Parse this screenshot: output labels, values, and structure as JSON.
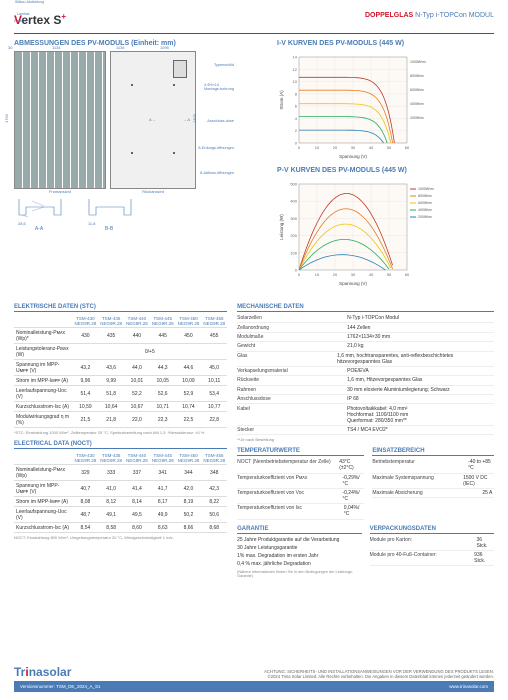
{
  "header": {
    "logo_pre": "V",
    "logo_text": "ertex S",
    "logo_plus": "+",
    "line1": "DOPPELGLAS",
    "line2": "N-Typ i-TOPCon MODUL"
  },
  "dim": {
    "title": "ABMESSUNGEN DES PV-MODULS (Einheit: mm)",
    "w1": "1134",
    "w2": "1134",
    "w3": "1095",
    "h": "1762",
    "hr": "1300",
    "t": "30",
    "front": "Frontansicht",
    "back": "Rückansicht",
    "aa": "A-A",
    "bb": "B-B",
    "d1": "28,5",
    "d2": "11,8",
    "typ": "Typenschild",
    "mont": "4-Φ9×14\nMontage-bohrung",
    "ansch": "Anschluss-dose",
    "erd": "8-Erdungs-öffnungen",
    "abfl": "8-Abfluss-öffnungen",
    "sil": "Silikon-Abdichtung",
    "lam": "Laminat",
    "rah": "Rahmen"
  },
  "iv": {
    "title": "I-V KURVEN DES PV-MODULS (445 W)",
    "xlabel": "Spannung (V)",
    "ylabel": "Strom (A)",
    "xmax": 60,
    "ymax": 14,
    "xtick": 10,
    "ytick": 2,
    "legend": [
      "1000W/m²",
      "800W/m²",
      "600W/m²",
      "400W/m²",
      "200W/m²"
    ],
    "colors": [
      "#c0392b",
      "#e67e22",
      "#f1c40f",
      "#27ae60",
      "#2980b9"
    ],
    "isc": [
      10.7,
      8.6,
      6.4,
      4.3,
      2.1
    ],
    "voc": [
      53,
      52,
      51,
      49,
      47
    ]
  },
  "pv": {
    "title": "P-V KURVEN DES PV-MODULS (445 W)",
    "xlabel": "Spannung (V)",
    "ylabel": "Leistung (W)",
    "xmax": 60,
    "ymax": 500,
    "xtick": 10,
    "ytick": 100,
    "legend": [
      "1000W/m²",
      "800W/m²",
      "600W/m²",
      "400W/m²",
      "200W/m²"
    ],
    "colors": [
      "#c0392b",
      "#e67e22",
      "#f1c40f",
      "#27ae60",
      "#2980b9"
    ],
    "pmax": [
      445,
      356,
      267,
      178,
      89
    ],
    "vmp": [
      44,
      43.5,
      43,
      42,
      40
    ]
  },
  "stc": {
    "title": "ELEKTRISCHE DATEN (STC)",
    "cols": [
      "TSM-430\nNEG9R.28",
      "TSM-435\nNEG9R.28",
      "TSM-440\nNEG9R.28",
      "TSM-445\nNEG9R.28",
      "TSM-450\nNEG9R.28",
      "TSM-455\nNEG9R.28"
    ],
    "rows": [
      {
        "k": "Nominalleistung-Pᴍᴀx (Wp)*",
        "v": [
          "430",
          "435",
          "440",
          "445",
          "450",
          "455"
        ]
      },
      {
        "k": "Leistungstoleranz-Pᴍᴀx (W)",
        "v": [
          "",
          "",
          "0/+5",
          "",
          "",
          ""
        ]
      },
      {
        "k": "Spannung im MPP-Uᴍᴘᴘ (V)",
        "v": [
          "43,2",
          "43,6",
          "44,0",
          "44,3",
          "44,6",
          "45,0"
        ]
      },
      {
        "k": "Strom im MPP-Iᴍᴘᴘ (A)",
        "v": [
          "9,96",
          "9,99",
          "10,01",
          "10,05",
          "10,09",
          "10,11"
        ]
      },
      {
        "k": "Leerlaufspannung-Uoc (V)",
        "v": [
          "51,4",
          "51,8",
          "52,2",
          "52,6",
          "52,9",
          "53,4"
        ]
      },
      {
        "k": "Kurzschlusstrom-Isc (A)",
        "v": [
          "10,59",
          "10,64",
          "10,67",
          "10,71",
          "10,74",
          "10,77"
        ]
      },
      {
        "k": "Modulwirkungsgrad η m (%)",
        "v": [
          "21,5",
          "21,8",
          "22,0",
          "22,3",
          "22,5",
          "22,8"
        ]
      }
    ],
    "note": "*STC: Einstrahlung 1000 W/m², Zelltemperatur 25 °C, Spektralverteilung nach AM 1,5.   *Messtoleranz: ±3 %"
  },
  "noct": {
    "title": "ELECTRICAL DATA (NOCT)",
    "cols": [
      "TSM-430\nNEG9R.28",
      "TSM-435\nNEG9R.28",
      "TSM-440\nNEG9R.28",
      "TSM-445\nNEG9R.28",
      "TSM-450\nNEG9R.28",
      "TSM-455\nNEG9R.28"
    ],
    "rows": [
      {
        "k": "Nominalleistung-Pᴍᴀx (Wp)",
        "v": [
          "329",
          "333",
          "337",
          "341",
          "344",
          "348"
        ]
      },
      {
        "k": "Spannung im MPP-Uᴍᴘᴘ (V)",
        "v": [
          "40,7",
          "41,0",
          "41,4",
          "41,7",
          "42,0",
          "42,3"
        ]
      },
      {
        "k": "Strom im MPP-Iᴍᴘᴘ (A)",
        "v": [
          "8,08",
          "8,12",
          "8,14",
          "8,17",
          "8,19",
          "8,22"
        ]
      },
      {
        "k": "Leerlaufspannung-Uoc (V)",
        "v": [
          "48,7",
          "49,1",
          "49,5",
          "49,9",
          "50,2",
          "50,6"
        ]
      },
      {
        "k": "Kurzschlusstrom-Isc (A)",
        "v": [
          "8,54",
          "8,58",
          "8,60",
          "8,63",
          "8,66",
          "8,68"
        ]
      }
    ],
    "note": "NOCT: Einstrahlung 800 W/m², Umgebungstemperatur 20 °C, Windgeschwindigkeit 1 m/s."
  },
  "mech": {
    "title": "MECHANISCHE DATEN",
    "rows": [
      {
        "k": "Solarzellen",
        "v": "N-Typ i-TOPCon Modul"
      },
      {
        "k": "Zellanordnung",
        "v": "144 Zellen"
      },
      {
        "k": "Modulmaße",
        "v": "1762×1134×30 mm"
      },
      {
        "k": "Gewicht",
        "v": "21,0 kg"
      },
      {
        "k": "Glas",
        "v": "1,6 mm, hochtransparentes, anti-reflexbeschichtetes hitzevorgespanntes Glas"
      },
      {
        "k": "Verkapselungsmaterial",
        "v": "POE/EVA"
      },
      {
        "k": "Rückseite",
        "v": "1,6 mm, Hitzevorgespanntes Glas"
      },
      {
        "k": "Rahmen",
        "v": "30 mm eloxierte Aluminiumlegierung; Schwarz"
      },
      {
        "k": "Anschlussdose",
        "v": "IP 68"
      },
      {
        "k": "Kabel",
        "v": "Photovoltaikkabel: 4,0 mm²\nHochformat: 1100/1100 mm\nQuerformat: 280/350 mm**"
      },
      {
        "k": "Stecker",
        "v": "TS4 / MC4 EVO2*"
      }
    ],
    "note": "**Je nach Bestellung"
  },
  "temp": {
    "title": "TEMPERATURWERTE",
    "rows": [
      {
        "k": "NOCT (Nennbetriebstemperatur der Zelle)",
        "v": "43°C (±2°C)"
      },
      {
        "k": "Temperaturkoeffizient von Pᴍᴀx",
        "v": "-0,29%/°C"
      },
      {
        "k": "Temperaturkoeffizient von Voc",
        "v": "-0,24%/°C"
      },
      {
        "k": "Temperaturkoeffizient von Isc",
        "v": "0,04%/°C"
      }
    ]
  },
  "einsatz": {
    "title": "EINSATZBEREICH",
    "rows": [
      {
        "k": "Betriebstemperatur",
        "v": "-40 to +85 °C"
      },
      {
        "k": "Maximale Systemspannung",
        "v": "1500 V DC (IEC)"
      },
      {
        "k": "Maximale Absicherung",
        "v": "25 A"
      }
    ]
  },
  "gar": {
    "title": "GARANTIE",
    "lines": [
      "25 Jahre Produktgarantie auf die Verarbeitung",
      "30 Jahre Leistungsgarantie",
      "1% max. Degradation im ersten Jahr",
      "0,4 % max. jährliche Degradation"
    ],
    "note": "(Nähere Informationen finden Sie in den Bedingungen der Leistungs-Garantie)"
  },
  "pack": {
    "title": "VERPACKUNGSDATEN",
    "rows": [
      {
        "k": "Module pro Karton:",
        "v": "36 Stck."
      },
      {
        "k": "Module pro 40-Fuß-Container:",
        "v": "936 Stck."
      }
    ]
  },
  "footer": {
    "logo": "Trinasolar",
    "warn": "ACHTUNG: SICHERHEITS- UND INSTALLATIONSANWEISUNGEN VOR DER VERWENDUNG DES PRODUKTS LESEN.",
    "copy": "©2024 Trina Solar Limited. Alle Rechte vorbehalten. Die Angaben in diesem Datenblatt können jederzeit geändert werden.",
    "ver": "Versionsnummer: TSM_DE_2024_A_S1",
    "url": "www.trinasolar.com"
  }
}
